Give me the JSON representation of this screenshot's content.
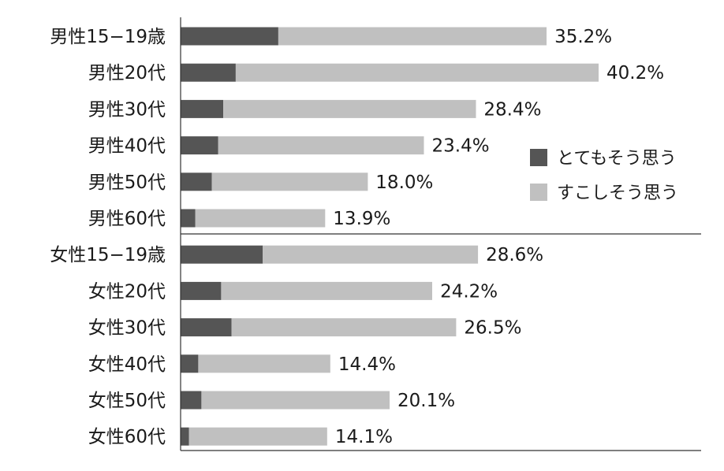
{
  "chart_data": {
    "type": "bar",
    "orientation": "horizontal",
    "stacked": true,
    "categories": [
      "男性15−19歳",
      "男性20代",
      "男性30代",
      "男性40代",
      "男性50代",
      "男性60代",
      "女性15−19歳",
      "女性20代",
      "女性30代",
      "女性40代",
      "女性50代",
      "女性60代"
    ],
    "series": [
      {
        "name": "とてもそう思う",
        "color": "#555555",
        "values": [
          9.4,
          5.3,
          4.1,
          3.6,
          3.0,
          1.4,
          7.9,
          3.9,
          4.9,
          1.7,
          2.0,
          0.8
        ]
      },
      {
        "name": "すこしそう思う",
        "color": "#c0c0c0",
        "values": [
          25.8,
          34.9,
          24.3,
          19.8,
          15.0,
          12.5,
          20.7,
          20.3,
          21.6,
          12.7,
          18.1,
          13.3
        ]
      }
    ],
    "totals": [
      "35.2%",
      "40.2%",
      "28.4%",
      "23.4%",
      "18.0%",
      "13.9%",
      "28.6%",
      "24.2%",
      "26.5%",
      "14.4%",
      "20.1%",
      "14.1%"
    ],
    "xlim": [
      0,
      40.2
    ],
    "legend_position": "right",
    "grid": false
  }
}
